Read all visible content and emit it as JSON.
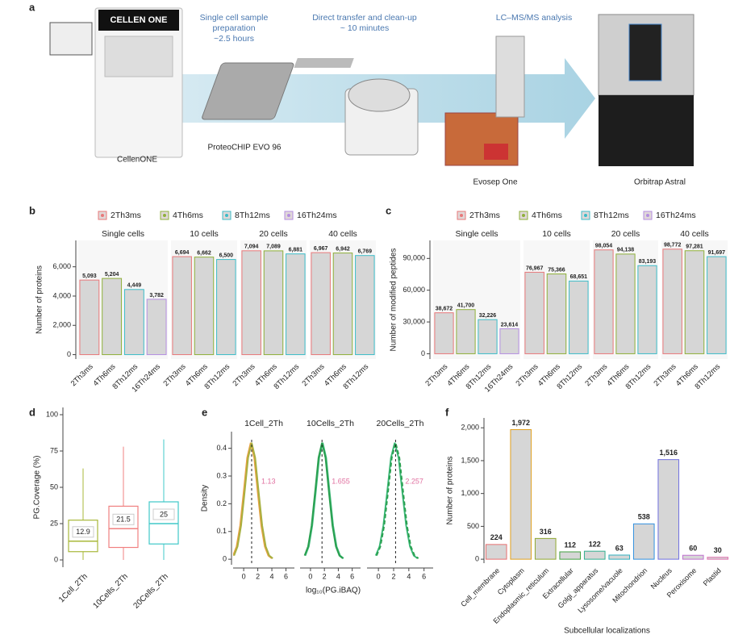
{
  "workflow": {
    "panel": "a",
    "machine_label": "CELLEN ONE",
    "steps": [
      [
        "Single cell sample",
        "preparation",
        "~2.5 hours"
      ],
      [
        "Direct transfer and clean-up",
        "~ 10 minutes"
      ],
      [
        "LC–MS/MS analysis"
      ]
    ],
    "devices": [
      "CellenONE",
      "ProteoCHIP EVO 96",
      "Evosep One",
      "Orbitrap Astral"
    ]
  },
  "chart_data": [
    {
      "panel": "b",
      "type": "facet_bar",
      "ylabel": "Number of proteins",
      "series": [
        {
          "name": "2Th3ms",
          "color": "#e8787a"
        },
        {
          "name": "4Th6ms",
          "color": "#8fb03a"
        },
        {
          "name": "8Th12ms",
          "color": "#3cbcc8"
        },
        {
          "name": "16Th24ms",
          "color": "#b48ee0"
        }
      ],
      "facets": [
        {
          "title": "Single cells",
          "categories": [
            "2Th3ms",
            "4Th6ms",
            "8Th12ms",
            "16Th24ms"
          ],
          "values": [
            5093,
            5204,
            4449,
            3782
          ],
          "value_labels": [
            "5,093",
            "5,204",
            "4,449",
            "3,782"
          ]
        },
        {
          "title": "10 cells",
          "categories": [
            "2Th3ms",
            "4Th6ms",
            "8Th12ms"
          ],
          "values": [
            6694,
            6662,
            6500
          ],
          "value_labels": [
            "6,694",
            "6,662",
            "6,500"
          ]
        },
        {
          "title": "20 cells",
          "categories": [
            "2Th3ms",
            "4Th6ms",
            "8Th12ms"
          ],
          "values": [
            7094,
            7089,
            6881
          ],
          "value_labels": [
            "7,094",
            "7,089",
            "6,881"
          ]
        },
        {
          "title": "40 cells",
          "categories": [
            "2Th3ms",
            "4Th6ms",
            "8Th12ms"
          ],
          "values": [
            6967,
            6942,
            6769
          ],
          "value_labels": [
            "6,967",
            "6,942",
            "6,769"
          ]
        }
      ],
      "ylim": [
        -300,
        7800
      ],
      "yticks": [
        0,
        {
          "value": 2000,
          "label": "2,000"
        },
        {
          "value": 4000,
          "label": "4,000"
        },
        {
          "value": 6000,
          "label": "6,000"
        }
      ]
    },
    {
      "panel": "c",
      "type": "facet_bar",
      "ylabel": "Number of modified peptides",
      "series": [
        {
          "name": "2Th3ms",
          "color": "#e8787a"
        },
        {
          "name": "4Th6ms",
          "color": "#8fb03a"
        },
        {
          "name": "8Th12ms",
          "color": "#3cbcc8"
        },
        {
          "name": "16Th24ms",
          "color": "#b48ee0"
        }
      ],
      "facets": [
        {
          "title": "Single cells",
          "categories": [
            "2Th3ms",
            "4Th6ms",
            "8Th12ms",
            "16Th24ms"
          ],
          "values": [
            38672,
            41700,
            32226,
            23614
          ],
          "value_labels": [
            "38,672",
            "41,700",
            "32,226",
            "23,614"
          ]
        },
        {
          "title": "10 cells",
          "categories": [
            "2Th3ms",
            "4Th6ms",
            "8Th12ms"
          ],
          "values": [
            76967,
            75366,
            68651
          ],
          "value_labels": [
            "76,967",
            "75,366",
            "68,651"
          ]
        },
        {
          "title": "20 cells",
          "categories": [
            "2Th3ms",
            "4Th6ms",
            "8Th12ms"
          ],
          "values": [
            98054,
            94138,
            83193
          ],
          "value_labels": [
            "98,054",
            "94,138",
            "83,193"
          ]
        },
        {
          "title": "40 cells",
          "categories": [
            "2Th3ms",
            "4Th6ms",
            "8Th12ms"
          ],
          "values": [
            98772,
            97281,
            91697
          ],
          "value_labels": [
            "98,772",
            "97,281",
            "91,697"
          ]
        }
      ],
      "ylim": [
        -5000,
        107000
      ],
      "yticks": [
        0,
        {
          "value": 30000,
          "label": "30,000"
        },
        {
          "value": 60000,
          "label": "60,000"
        },
        {
          "value": 90000,
          "label": "90,000"
        }
      ]
    },
    {
      "panel": "d",
      "type": "box",
      "ylabel": "PG.Coverage (%)",
      "categories": [
        "1Cell_2Th",
        "10Cells_2Th",
        "20Cells_2Th"
      ],
      "colors": [
        "#a8b83a",
        "#f08080",
        "#40c8c8"
      ],
      "whisker_low": [
        0,
        0,
        0
      ],
      "q1": [
        5.7,
        8.6,
        11
      ],
      "median": [
        12.9,
        21.5,
        25
      ],
      "q3": [
        27.4,
        37,
        40
      ],
      "whisker_high": [
        63,
        78,
        83
      ],
      "ylim": [
        -5,
        105
      ],
      "yticks": [
        0,
        25,
        50,
        75,
        100
      ]
    },
    {
      "panel": "e",
      "type": "line",
      "ylabel": "Density",
      "xlabel": "log₁₀(PG.iBAQ)",
      "xlim": [
        -1.5,
        7.2
      ],
      "xticks": [
        0,
        2,
        4,
        6
      ],
      "ylim": [
        -0.02,
        0.46
      ],
      "yticks": [
        0,
        0.1,
        0.2,
        0.3,
        0.4
      ],
      "vline_color": "#e070a0",
      "facets": [
        {
          "title": "1Cell_2Th",
          "vline": 1.13,
          "series": [
            {
              "color": "#e8a040",
              "dashed": false,
              "x": [
                -1.5,
                -1,
                -0.5,
                0,
                0.5,
                1,
                1.5,
                2,
                2.5,
                3,
                3.5,
                4
              ],
              "values": [
                0.013,
                0.046,
                0.121,
                0.241,
                0.366,
                0.42,
                0.366,
                0.241,
                0.121,
                0.046,
                0.013,
                0.003
              ]
            },
            {
              "color": "#a8b040",
              "dashed": false,
              "x": [
                -1.37,
                -0.87,
                -0.37,
                0.13,
                0.63,
                1.13,
                1.63,
                2.13,
                2.63,
                3.13,
                3.63,
                4.13
              ],
              "values": [
                0.013,
                0.046,
                0.121,
                0.241,
                0.366,
                0.42,
                0.366,
                0.241,
                0.121,
                0.046,
                0.013,
                0.003
              ]
            }
          ]
        },
        {
          "title": "10Cells_2Th",
          "vline": 1.655,
          "series": [
            {
              "color": "#3cb878",
              "dashed": false,
              "x": [
                -0.75,
                -0.25,
                0.25,
                0.75,
                1.25,
                1.75,
                2.25,
                2.75,
                3.25,
                3.75,
                4.25,
                4.75
              ],
              "values": [
                0.013,
                0.046,
                0.121,
                0.241,
                0.366,
                0.42,
                0.366,
                0.241,
                0.121,
                0.046,
                0.013,
                0.003
              ]
            },
            {
              "color": "#2aa050",
              "dashed": false,
              "x": [
                -0.845,
                -0.345,
                0.155,
                0.655,
                1.155,
                1.655,
                2.155,
                2.655,
                3.155,
                3.655,
                4.155,
                4.655
              ],
              "values": [
                0.013,
                0.046,
                0.121,
                0.241,
                0.366,
                0.42,
                0.366,
                0.241,
                0.121,
                0.046,
                0.013,
                0.003
              ]
            }
          ]
        },
        {
          "title": "20Cells_2Th",
          "vline": 2.257,
          "series": [
            {
              "color": "#3cb878",
              "dashed": false,
              "x": [
                -0.35,
                0.15,
                0.65,
                1.15,
                1.65,
                2.15,
                2.65,
                3.15,
                3.65,
                4.15,
                4.65,
                5.15
              ],
              "values": [
                0.013,
                0.046,
                0.121,
                0.241,
                0.366,
                0.42,
                0.366,
                0.241,
                0.121,
                0.046,
                0.013,
                0.003
              ]
            },
            {
              "color": "#2aa050",
              "dashed": true,
              "x": [
                -0.243,
                0.257,
                0.757,
                1.257,
                1.757,
                2.257,
                2.757,
                3.257,
                3.757,
                4.257,
                4.757,
                5.257
              ],
              "values": [
                0.013,
                0.046,
                0.121,
                0.241,
                0.366,
                0.42,
                0.366,
                0.241,
                0.121,
                0.046,
                0.013,
                0.003
              ]
            }
          ]
        }
      ]
    },
    {
      "panel": "f",
      "type": "bar",
      "ylabel": "Number of proteins",
      "xlabel": "Subcellular localizations",
      "categories": [
        "Cell_membrane",
        "Cytoplasm",
        "Endoplasmic_reticulum",
        "Extracellular",
        "Golgi_apparatus",
        "Lysosome/vacuole",
        "Mitochondrion",
        "Nucleus",
        "Peroxisome",
        "Plastid"
      ],
      "values": [
        224,
        1972,
        316,
        112,
        122,
        63,
        538,
        1516,
        60,
        30
      ],
      "value_labels": [
        "224",
        "1,972",
        "316",
        "112",
        "122",
        "63",
        "538",
        "1,516",
        "60",
        "30"
      ],
      "colors": [
        "#e87070",
        "#e0a020",
        "#90a830",
        "#40a040",
        "#30b090",
        "#30b0c0",
        "#3090e0",
        "#7070e0",
        "#c070d0",
        "#e070b0"
      ],
      "ylim": [
        -60,
        2150
      ],
      "yticks": [
        0,
        500,
        {
          "value": 1000,
          "label": "1,000"
        },
        {
          "value": 1500,
          "label": "1,500"
        },
        {
          "value": 2000,
          "label": "2,000"
        }
      ]
    }
  ]
}
